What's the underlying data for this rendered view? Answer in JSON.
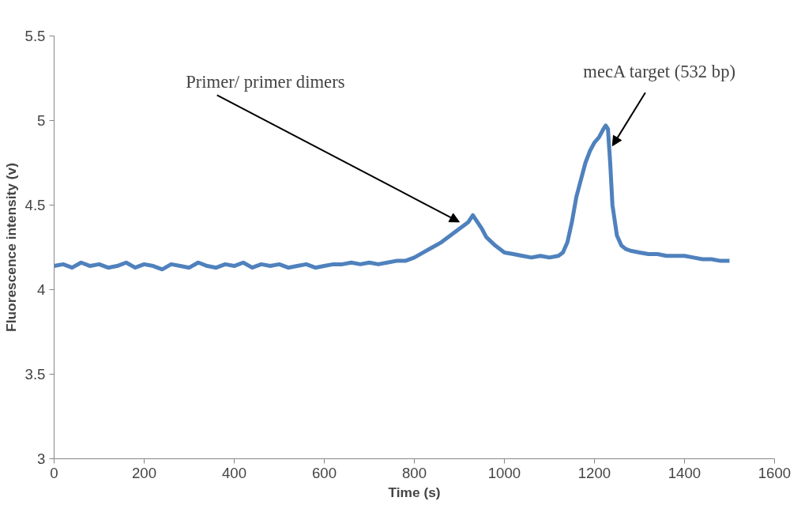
{
  "chart_data": {
    "type": "line",
    "xlabel": "Time (s)",
    "ylabel": "Fluorescence intensity (v)",
    "xlim": [
      0,
      1600
    ],
    "ylim": [
      3,
      5.5
    ],
    "xticks": [
      0,
      200,
      400,
      600,
      800,
      1000,
      1200,
      1400,
      1600
    ],
    "yticks": [
      3,
      3.5,
      4,
      4.5,
      5,
      5.5
    ],
    "grid": false,
    "marker": "none",
    "line_style": "solid",
    "series": [
      {
        "color": "#4f81bd",
        "x": [
          0,
          20,
          40,
          60,
          80,
          100,
          120,
          140,
          160,
          180,
          200,
          220,
          240,
          260,
          280,
          300,
          320,
          340,
          360,
          380,
          400,
          420,
          440,
          460,
          480,
          500,
          520,
          540,
          560,
          580,
          600,
          620,
          640,
          660,
          680,
          700,
          720,
          740,
          760,
          780,
          800,
          820,
          840,
          860,
          880,
          900,
          910,
          920,
          930,
          940,
          950,
          960,
          980,
          1000,
          1020,
          1040,
          1060,
          1080,
          1100,
          1120,
          1130,
          1140,
          1150,
          1160,
          1170,
          1180,
          1190,
          1200,
          1210,
          1220,
          1225,
          1230,
          1235,
          1240,
          1250,
          1260,
          1270,
          1280,
          1300,
          1320,
          1340,
          1360,
          1380,
          1400,
          1420,
          1440,
          1460,
          1480,
          1500
        ],
        "values": [
          4.14,
          4.15,
          4.13,
          4.16,
          4.14,
          4.15,
          4.13,
          4.14,
          4.16,
          4.13,
          4.15,
          4.14,
          4.12,
          4.15,
          4.14,
          4.13,
          4.16,
          4.14,
          4.13,
          4.15,
          4.14,
          4.16,
          4.13,
          4.15,
          4.14,
          4.15,
          4.13,
          4.14,
          4.15,
          4.13,
          4.14,
          4.15,
          4.15,
          4.16,
          4.15,
          4.16,
          4.15,
          4.16,
          4.17,
          4.17,
          4.19,
          4.22,
          4.25,
          4.28,
          4.32,
          4.36,
          4.38,
          4.4,
          4.44,
          4.4,
          4.36,
          4.31,
          4.26,
          4.22,
          4.21,
          4.2,
          4.19,
          4.2,
          4.19,
          4.2,
          4.22,
          4.28,
          4.4,
          4.55,
          4.65,
          4.75,
          4.82,
          4.87,
          4.9,
          4.95,
          4.97,
          4.95,
          4.75,
          4.5,
          4.32,
          4.26,
          4.24,
          4.23,
          4.22,
          4.21,
          4.21,
          4.2,
          4.2,
          4.2,
          4.19,
          4.18,
          4.18,
          4.17,
          4.17
        ]
      }
    ],
    "annotations": [
      {
        "text": "Primer/ primer dimers",
        "x": 900,
        "y": 4.4
      },
      {
        "text": "mecA target (532 bp)",
        "x": 1240,
        "y": 4.85
      }
    ]
  }
}
